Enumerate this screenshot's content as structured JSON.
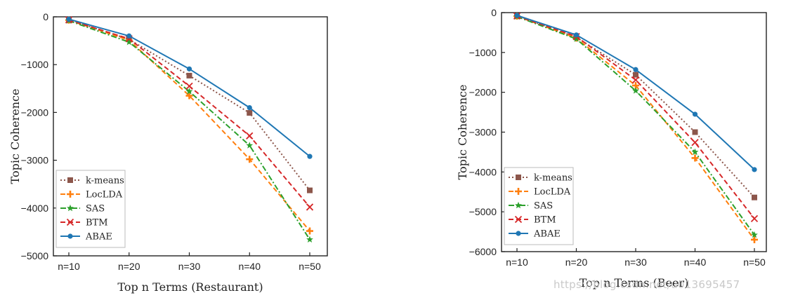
{
  "watermark": "https://blog.csdn.net/u013695457",
  "chart_data": [
    {
      "type": "line",
      "xlabel": "Top n Terms (Restaurant)",
      "ylabel": "Topic Coherence",
      "categories": [
        "n=10",
        "n=20",
        "n=30",
        "n=40",
        "n=50"
      ],
      "ylim": [
        -5000,
        0
      ],
      "yticks": [
        0,
        -1000,
        -2000,
        -3000,
        -4000,
        -5000
      ],
      "ytick_labels": [
        "0",
        "−1000",
        "−2000",
        "−3000",
        "−4000",
        "−5000"
      ],
      "legend_position": "bottom-left",
      "series": [
        {
          "name": "k-means",
          "color": "#8c564b",
          "dash": "dotted",
          "marker": "square",
          "values": [
            -60,
            -470,
            -1230,
            -2010,
            -3630
          ]
        },
        {
          "name": "LocLDA",
          "color": "#ff7f0e",
          "dash": "dashed",
          "marker": "plus",
          "values": [
            -70,
            -490,
            -1650,
            -2980,
            -4480
          ]
        },
        {
          "name": "SAS",
          "color": "#2ca02c",
          "dash": "dashdot",
          "marker": "star",
          "values": [
            -80,
            -530,
            -1560,
            -2690,
            -4660
          ]
        },
        {
          "name": "BTM",
          "color": "#d62728",
          "dash": "dashed",
          "marker": "x",
          "values": [
            -65,
            -460,
            -1450,
            -2490,
            -3980
          ]
        },
        {
          "name": "ABAE",
          "color": "#1f77b4",
          "dash": "solid",
          "marker": "circle",
          "values": [
            -50,
            -400,
            -1090,
            -1900,
            -2920
          ]
        }
      ]
    },
    {
      "type": "line",
      "xlabel": "Top n Terms (Beer)",
      "ylabel": "Topic Coherence",
      "categories": [
        "n=10",
        "n=20",
        "n=30",
        "n=40",
        "n=50"
      ],
      "ylim": [
        -6000,
        0
      ],
      "yticks": [
        0,
        -1000,
        -2000,
        -3000,
        -4000,
        -5000,
        -6000
      ],
      "ytick_labels": [
        "0",
        "−1000",
        "−2000",
        "−3000",
        "−4000",
        "−5000",
        "−6000"
      ],
      "legend_position": "bottom-left",
      "series": [
        {
          "name": "k-means",
          "color": "#8c564b",
          "dash": "dotted",
          "marker": "square",
          "values": [
            -80,
            -620,
            -1560,
            -3000,
            -4640
          ]
        },
        {
          "name": "LocLDA",
          "color": "#ff7f0e",
          "dash": "dashed",
          "marker": "plus",
          "values": [
            -90,
            -640,
            -1830,
            -3650,
            -5700
          ]
        },
        {
          "name": "SAS",
          "color": "#2ca02c",
          "dash": "dashdot",
          "marker": "star",
          "values": [
            -100,
            -660,
            -1960,
            -3500,
            -5580
          ]
        },
        {
          "name": "BTM",
          "color": "#d62728",
          "dash": "dashed",
          "marker": "x",
          "values": [
            -85,
            -600,
            -1690,
            -3260,
            -5170
          ]
        },
        {
          "name": "ABAE",
          "color": "#1f77b4",
          "dash": "solid",
          "marker": "circle",
          "values": [
            -70,
            -560,
            -1430,
            -2550,
            -3940
          ]
        }
      ]
    }
  ]
}
